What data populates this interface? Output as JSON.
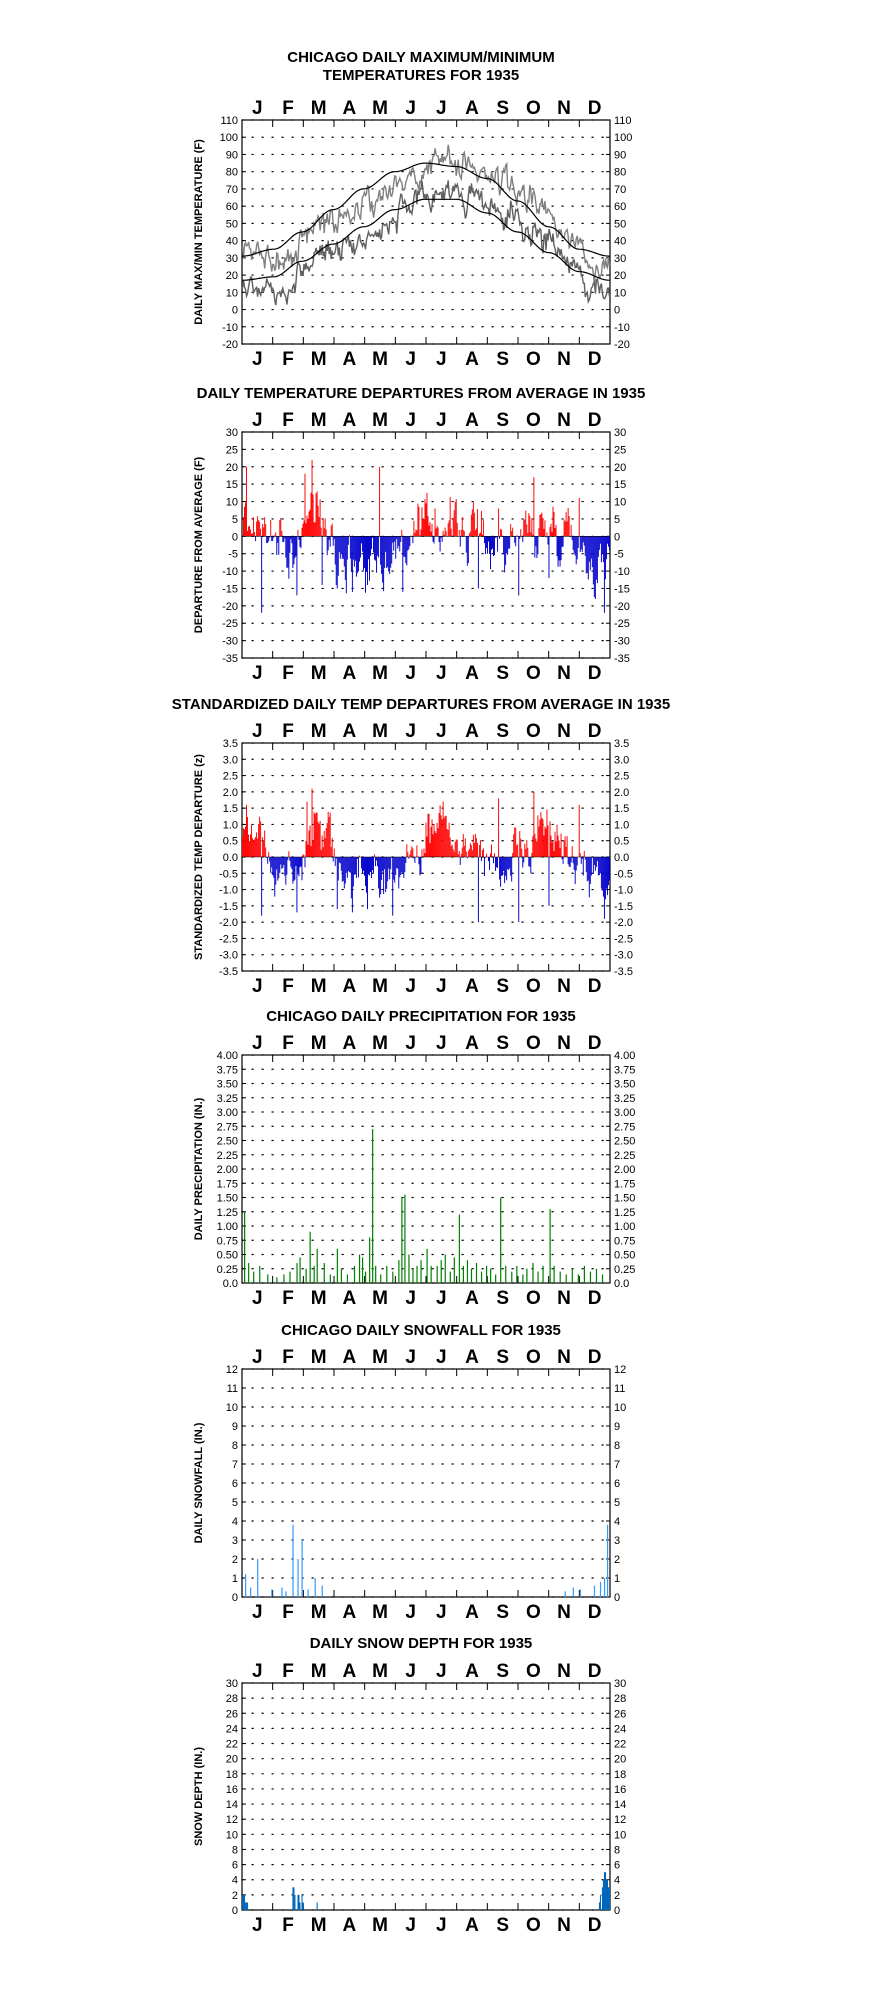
{
  "months": [
    "J",
    "F",
    "M",
    "A",
    "M",
    "J",
    "J",
    "A",
    "S",
    "O",
    "N",
    "D"
  ],
  "colors": {
    "axis": "#000000",
    "max_series": "#808080",
    "min_series": "#606060",
    "normal_line": "#000000",
    "positive": "#ff0000",
    "negative": "#0000cc",
    "precip": "#008000",
    "snowfall": "#3399ff",
    "snowdepth": "#0066bb"
  },
  "chart_data": [
    {
      "id": "maxmin",
      "type": "line",
      "title": [
        "CHICAGO DAILY MAXIMUM/MINIMUM",
        "TEMPERATURES FOR 1935"
      ],
      "ylabel": "DAILY MAX/MIN TEMPERATURE (F)",
      "ylim": [
        -20,
        110
      ],
      "yticks": [
        "110",
        "100",
        "90",
        "80",
        "70",
        "60",
        "50",
        "40",
        "30",
        "20",
        "10",
        "0",
        "-10",
        "-20"
      ],
      "grid": true,
      "series": [
        {
          "key": "max_actual",
          "monthly_mean": [
            32,
            30,
            50,
            55,
            66,
            76,
            87,
            82,
            75,
            63,
            45,
            28
          ]
        },
        {
          "key": "min_actual",
          "monthly_mean": [
            14,
            13,
            32,
            38,
            46,
            58,
            69,
            65,
            54,
            46,
            31,
            12
          ]
        },
        {
          "key": "normal_max",
          "points": [
            [
              1,
              31
            ],
            [
              32,
              35
            ],
            [
              60,
              45
            ],
            [
              91,
              58
            ],
            [
              121,
              70
            ],
            [
              152,
              80
            ],
            [
              182,
              85
            ],
            [
              213,
              83
            ],
            [
              244,
              76
            ],
            [
              274,
              63
            ],
            [
              305,
              48
            ],
            [
              335,
              35
            ],
            [
              365,
              31
            ]
          ]
        },
        {
          "key": "normal_min",
          "points": [
            [
              1,
              17
            ],
            [
              32,
              19
            ],
            [
              60,
              28
            ],
            [
              91,
              38
            ],
            [
              121,
              48
            ],
            [
              152,
              58
            ],
            [
              182,
              64
            ],
            [
              213,
              64
            ],
            [
              244,
              56
            ],
            [
              274,
              45
            ],
            [
              305,
              33
            ],
            [
              335,
              22
            ],
            [
              365,
              17
            ]
          ]
        }
      ]
    },
    {
      "id": "departure",
      "type": "bar",
      "title": [
        "DAILY TEMPERATURE DEPARTURES FROM AVERAGE IN 1935"
      ],
      "ylabel": "DEPARTURE FROM AVERAGE (F)",
      "ylim": [
        -35,
        30
      ],
      "yticks": [
        "30",
        "25",
        "20",
        "15",
        "10",
        "5",
        "0",
        "-5",
        "-10",
        "-15",
        "-20",
        "-25",
        "-30",
        "-35"
      ],
      "grid": true,
      "monthly_anomaly": [
        4,
        -6,
        8,
        -6,
        -7,
        -2,
        4,
        1,
        -2,
        2,
        3,
        -7
      ],
      "peaks": [
        [
          5,
          20
        ],
        [
          20,
          -22
        ],
        [
          55,
          -17
        ],
        [
          63,
          18
        ],
        [
          70,
          22
        ],
        [
          80,
          -14
        ],
        [
          95,
          -15
        ],
        [
          110,
          -16
        ],
        [
          125,
          -14
        ],
        [
          137,
          20
        ],
        [
          160,
          -16
        ],
        [
          192,
          8
        ],
        [
          235,
          -15
        ],
        [
          255,
          8
        ],
        [
          275,
          -17
        ],
        [
          290,
          17
        ],
        [
          305,
          -12
        ],
        [
          335,
          11
        ],
        [
          360,
          -22
        ]
      ]
    },
    {
      "id": "standardized",
      "type": "bar",
      "title": [
        "STANDARDIZED DAILY TEMP DEPARTURES FROM AVERAGE IN 1935"
      ],
      "ylabel": "STANDARDIZED TEMP DEPARTURE (z)",
      "ylim": [
        -3.5,
        3.5
      ],
      "yticks": [
        "3.5",
        "3.0",
        "2.5",
        "2.0",
        "1.5",
        "1.0",
        "0.5",
        "0.0",
        "-0.5",
        "-1.0",
        "-1.5",
        "-2.0",
        "-2.5",
        "-3.0",
        "-3.5"
      ],
      "grid": true,
      "monthly_anomaly": [
        0.5,
        -0.6,
        0.8,
        -0.7,
        -0.9,
        -0.2,
        0.9,
        0.3,
        -0.4,
        0.4,
        0.4,
        -0.8
      ],
      "peaks": [
        [
          5,
          1.6
        ],
        [
          20,
          -1.8
        ],
        [
          55,
          -1.7
        ],
        [
          65,
          1.7
        ],
        [
          70,
          2.1
        ],
        [
          95,
          -1.6
        ],
        [
          110,
          -1.7
        ],
        [
          125,
          -1.6
        ],
        [
          150,
          -1.8
        ],
        [
          200,
          1.7
        ],
        [
          235,
          -2.0
        ],
        [
          255,
          1.8
        ],
        [
          275,
          -2.0
        ],
        [
          290,
          2.0
        ],
        [
          305,
          -1.5
        ],
        [
          335,
          1.6
        ],
        [
          360,
          -1.9
        ]
      ]
    },
    {
      "id": "precip",
      "type": "bar",
      "title": [
        "CHICAGO DAILY PRECIPITATION FOR 1935"
      ],
      "ylabel": "DAILY PRECIPITATION (IN.)",
      "ylim": [
        0,
        4
      ],
      "yticks": [
        "4.00",
        "3.75",
        "3.50",
        "3.25",
        "3.00",
        "2.75",
        "2.50",
        "2.25",
        "2.00",
        "1.75",
        "1.50",
        "1.25",
        "1.00",
        "0.75",
        "0.50",
        "0.25",
        "0.0"
      ],
      "grid": true,
      "values": [
        [
          3,
          1.25
        ],
        [
          7,
          0.35
        ],
        [
          12,
          0.2
        ],
        [
          18,
          0.3
        ],
        [
          26,
          0.15
        ],
        [
          35,
          0.1
        ],
        [
          42,
          0.15
        ],
        [
          48,
          0.2
        ],
        [
          55,
          0.35
        ],
        [
          58,
          0.45
        ],
        [
          64,
          0.25
        ],
        [
          68,
          0.9
        ],
        [
          72,
          0.3
        ],
        [
          75,
          0.6
        ],
        [
          82,
          0.35
        ],
        [
          88,
          0.15
        ],
        [
          95,
          0.6
        ],
        [
          99,
          0.25
        ],
        [
          105,
          0.15
        ],
        [
          112,
          0.3
        ],
        [
          117,
          0.5
        ],
        [
          120,
          0.45
        ],
        [
          123,
          0.2
        ],
        [
          127,
          0.8
        ],
        [
          130,
          2.7
        ],
        [
          133,
          0.3
        ],
        [
          138,
          0.15
        ],
        [
          144,
          0.3
        ],
        [
          150,
          0.2
        ],
        [
          156,
          0.4
        ],
        [
          159,
          1.5
        ],
        [
          162,
          1.55
        ],
        [
          166,
          0.5
        ],
        [
          170,
          0.25
        ],
        [
          174,
          0.3
        ],
        [
          178,
          0.4
        ],
        [
          184,
          0.6
        ],
        [
          188,
          0.3
        ],
        [
          194,
          0.3
        ],
        [
          198,
          0.4
        ],
        [
          202,
          0.5
        ],
        [
          207,
          0.2
        ],
        [
          211,
          0.45
        ],
        [
          216,
          1.2
        ],
        [
          220,
          0.3
        ],
        [
          224,
          0.4
        ],
        [
          228,
          0.25
        ],
        [
          233,
          0.35
        ],
        [
          238,
          0.2
        ],
        [
          243,
          0.3
        ],
        [
          247,
          0.25
        ],
        [
          252,
          0.15
        ],
        [
          257,
          1.5
        ],
        [
          262,
          0.3
        ],
        [
          268,
          0.2
        ],
        [
          273,
          0.3
        ],
        [
          279,
          0.15
        ],
        [
          283,
          0.25
        ],
        [
          289,
          0.35
        ],
        [
          294,
          0.2
        ],
        [
          299,
          0.3
        ],
        [
          306,
          1.3
        ],
        [
          310,
          0.3
        ],
        [
          316,
          0.2
        ],
        [
          322,
          0.15
        ],
        [
          328,
          0.25
        ],
        [
          334,
          0.15
        ],
        [
          340,
          0.3
        ],
        [
          346,
          0.2
        ],
        [
          352,
          0.25
        ],
        [
          358,
          0.15
        ]
      ]
    },
    {
      "id": "snowfall",
      "type": "bar",
      "title": [
        "CHICAGO DAILY SNOWFALL FOR 1935"
      ],
      "ylabel": "DAILY SNOWFALL (IN.)",
      "ylim": [
        0,
        12
      ],
      "yticks": [
        "12",
        "11",
        "10",
        "9",
        "8",
        "7",
        "6",
        "5",
        "4",
        "3",
        "2",
        "1",
        "0"
      ],
      "grid": true,
      "values": [
        [
          4,
          1.2
        ],
        [
          9,
          0.5
        ],
        [
          16,
          2.0
        ],
        [
          30,
          0.4
        ],
        [
          40,
          0.5
        ],
        [
          44,
          0.3
        ],
        [
          51,
          3.8
        ],
        [
          56,
          2.0
        ],
        [
          60,
          3.0
        ],
        [
          66,
          0.4
        ],
        [
          73,
          1.0
        ],
        [
          80,
          0.6
        ],
        [
          321,
          0.3
        ],
        [
          329,
          0.5
        ],
        [
          336,
          0.4
        ],
        [
          350,
          0.6
        ],
        [
          356,
          0.8
        ],
        [
          360,
          1.0
        ],
        [
          363,
          3.8
        ]
      ]
    },
    {
      "id": "snowdepth",
      "type": "area",
      "title": [
        "DAILY SNOW DEPTH FOR 1935"
      ],
      "ylabel": "SNOW DEPTH (IN.)",
      "ylim": [
        0,
        30
      ],
      "yticks": [
        "30",
        "28",
        "26",
        "24",
        "22",
        "20",
        "18",
        "16",
        "14",
        "12",
        "10",
        "8",
        "6",
        "4",
        "2",
        "0"
      ],
      "grid": true,
      "values": [
        [
          1,
          2
        ],
        [
          2,
          2
        ],
        [
          3,
          2
        ],
        [
          4,
          1
        ],
        [
          5,
          1
        ],
        [
          6,
          1
        ],
        [
          51,
          3
        ],
        [
          52,
          3
        ],
        [
          53,
          2
        ],
        [
          56,
          2
        ],
        [
          57,
          2
        ],
        [
          58,
          1
        ],
        [
          60,
          2
        ],
        [
          61,
          1
        ],
        [
          75,
          1
        ],
        [
          355,
          1
        ],
        [
          356,
          2
        ],
        [
          358,
          3
        ],
        [
          359,
          4
        ],
        [
          360,
          5
        ],
        [
          361,
          5
        ],
        [
          362,
          4
        ],
        [
          363,
          4
        ],
        [
          364,
          3
        ],
        [
          365,
          3
        ]
      ]
    }
  ]
}
